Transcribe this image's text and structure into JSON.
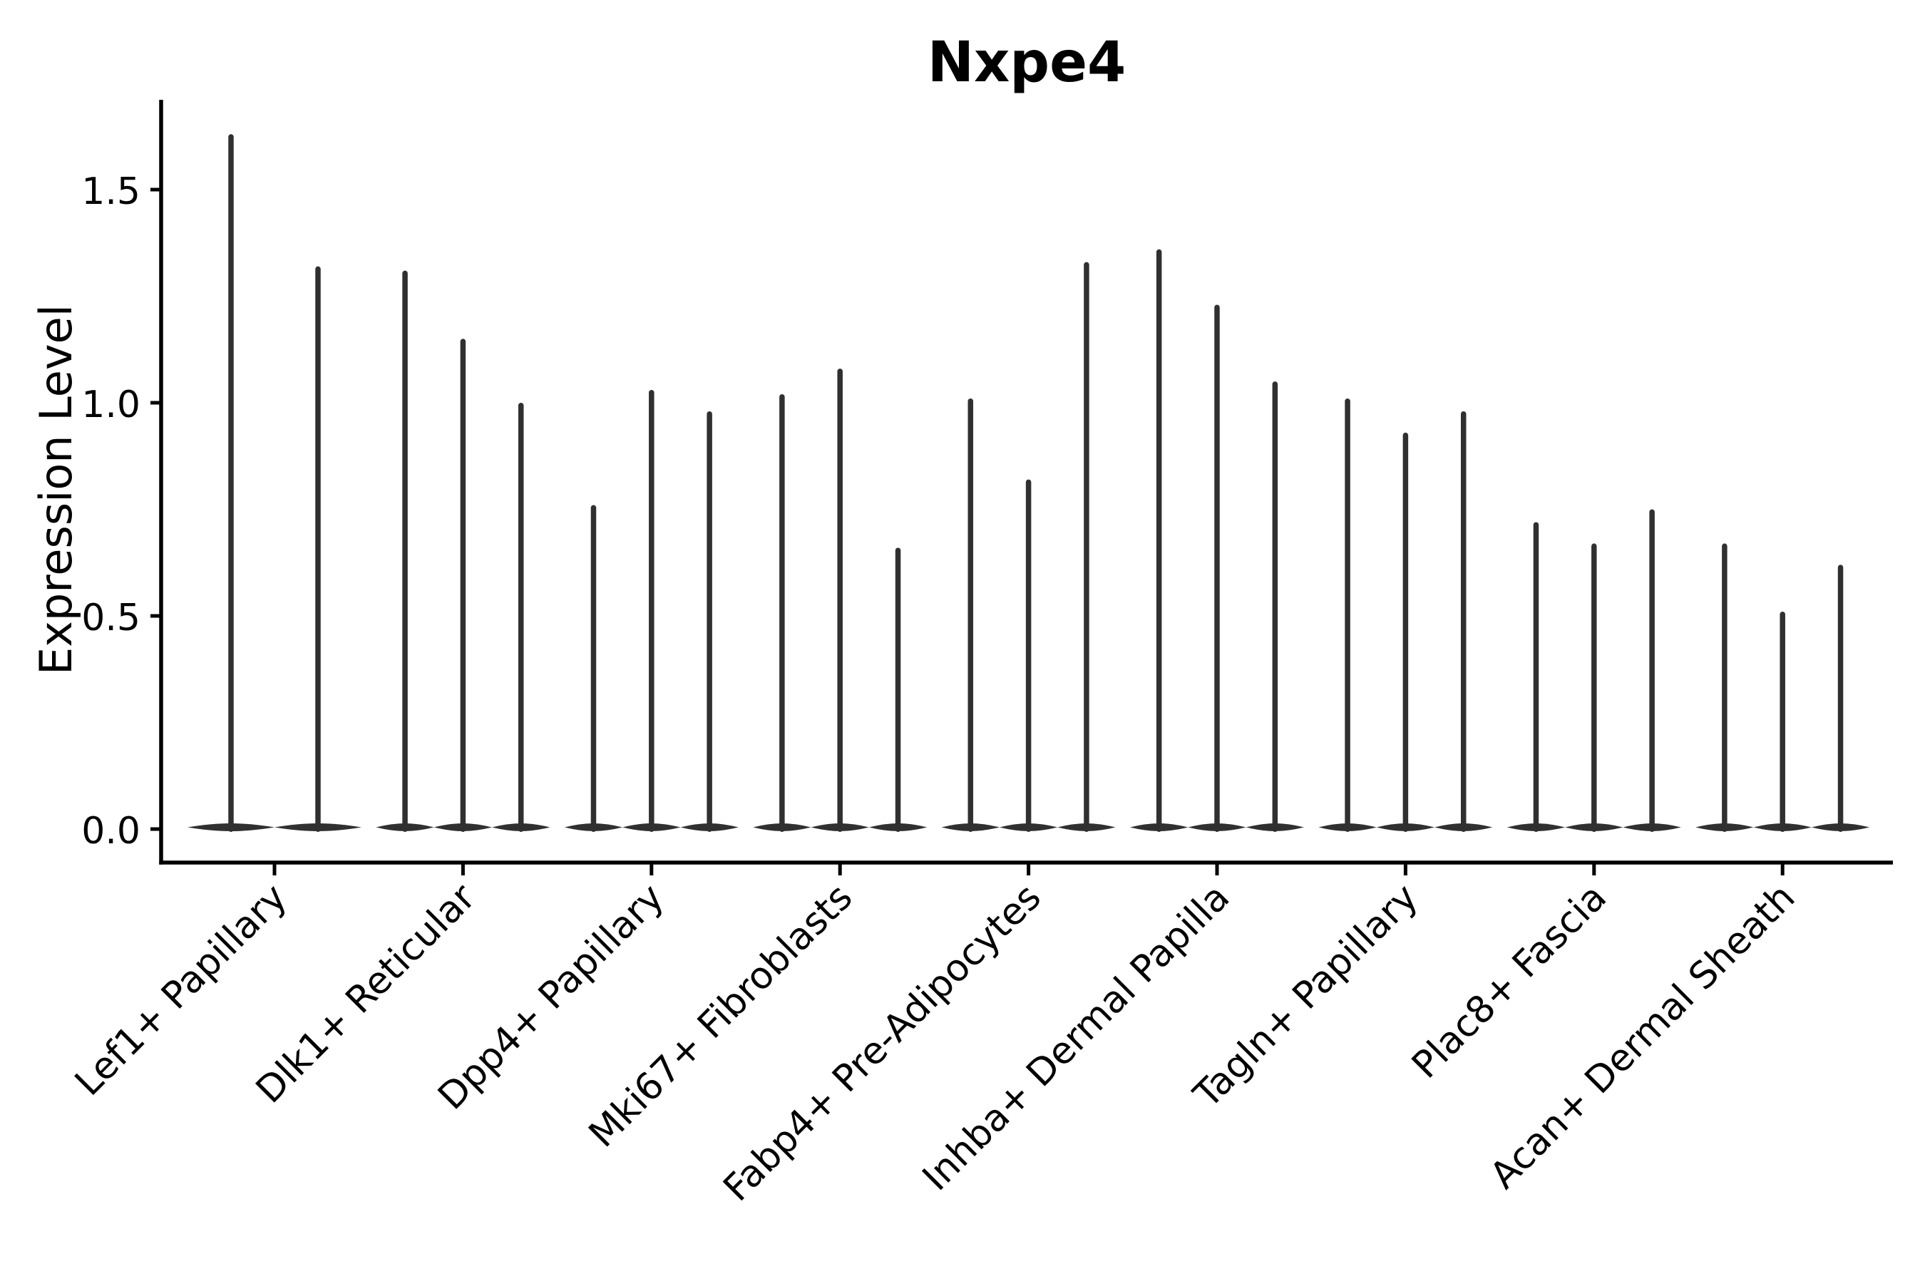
{
  "chart_data": {
    "type": "violin",
    "title": "Nxpe4",
    "ylabel": "Expression Level",
    "xlabel": "",
    "yticks": [
      0.0,
      0.5,
      1.0,
      1.5
    ],
    "ylim": [
      -0.08,
      1.71
    ],
    "grid": "off",
    "legend": "none",
    "categories": [
      "Lef1+ Papillary",
      "Dlk1+ Reticular",
      "Dpp4+ Papillary",
      "Mki67+ Fibroblasts",
      "Fabp4+ Pre-Adipocytes",
      "Inhba+ Dermal Papilla",
      "Tagln+ Papillary",
      "Plac8+ Fascia",
      "Acan+ Dermal Sheath"
    ],
    "description": "Needle-shaped violins: density mass concentrated at expression 0 (wide flat base) with a thin spike reaching the maximum expression value; 2-3 violins per cell-type group.",
    "violin_max_values": [
      [
        1.63,
        1.32
      ],
      [
        1.31,
        1.15,
        1.0
      ],
      [
        0.76,
        1.03,
        0.98
      ],
      [
        1.02,
        1.08,
        0.66
      ],
      [
        1.01,
        0.82,
        1.33
      ],
      [
        1.36,
        1.23,
        1.05
      ],
      [
        1.01,
        0.93,
        0.98
      ],
      [
        0.72,
        0.67,
        0.75
      ],
      [
        0.67,
        0.51,
        0.62
      ]
    ],
    "colors": {
      "violin": "#303030",
      "axis": "#000000",
      "text": "#000000",
      "background": "#ffffff"
    }
  }
}
